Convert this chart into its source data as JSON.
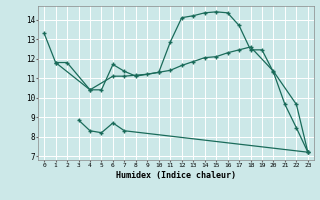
{
  "xlabel": "Humidex (Indice chaleur)",
  "bg_color": "#cce8e8",
  "grid_color": "#ffffff",
  "line_color": "#1a6b5a",
  "xlim": [
    -0.5,
    23.5
  ],
  "ylim": [
    6.8,
    14.7
  ],
  "xticks": [
    0,
    1,
    2,
    3,
    4,
    5,
    6,
    7,
    8,
    9,
    10,
    11,
    12,
    13,
    14,
    15,
    16,
    17,
    18,
    19,
    20,
    21,
    22,
    23
  ],
  "yticks": [
    7,
    8,
    9,
    10,
    11,
    12,
    13,
    14
  ],
  "curve1_x": [
    0,
    1,
    2,
    4,
    5,
    6,
    7,
    8,
    10,
    11,
    12,
    13,
    14,
    15,
    16,
    17,
    18,
    19,
    20,
    21,
    22,
    23
  ],
  "curve1_y": [
    13.3,
    11.8,
    11.8,
    10.4,
    10.4,
    11.7,
    11.35,
    11.1,
    11.3,
    12.85,
    14.1,
    14.2,
    14.35,
    14.4,
    14.35,
    13.7,
    12.45,
    12.45,
    11.3,
    9.65,
    8.45,
    7.2
  ],
  "curve2_x": [
    1,
    4,
    6,
    7,
    8,
    9,
    10,
    11,
    12,
    13,
    14,
    15,
    16,
    17,
    18,
    20,
    22,
    23
  ],
  "curve2_y": [
    11.8,
    10.4,
    11.1,
    11.1,
    11.15,
    11.2,
    11.3,
    11.4,
    11.65,
    11.85,
    12.05,
    12.1,
    12.3,
    12.45,
    12.6,
    11.35,
    9.65,
    7.2
  ],
  "curve3_x": [
    3,
    4,
    5,
    6,
    7,
    23
  ],
  "curve3_y": [
    8.85,
    8.3,
    8.2,
    8.7,
    8.3,
    7.2
  ]
}
